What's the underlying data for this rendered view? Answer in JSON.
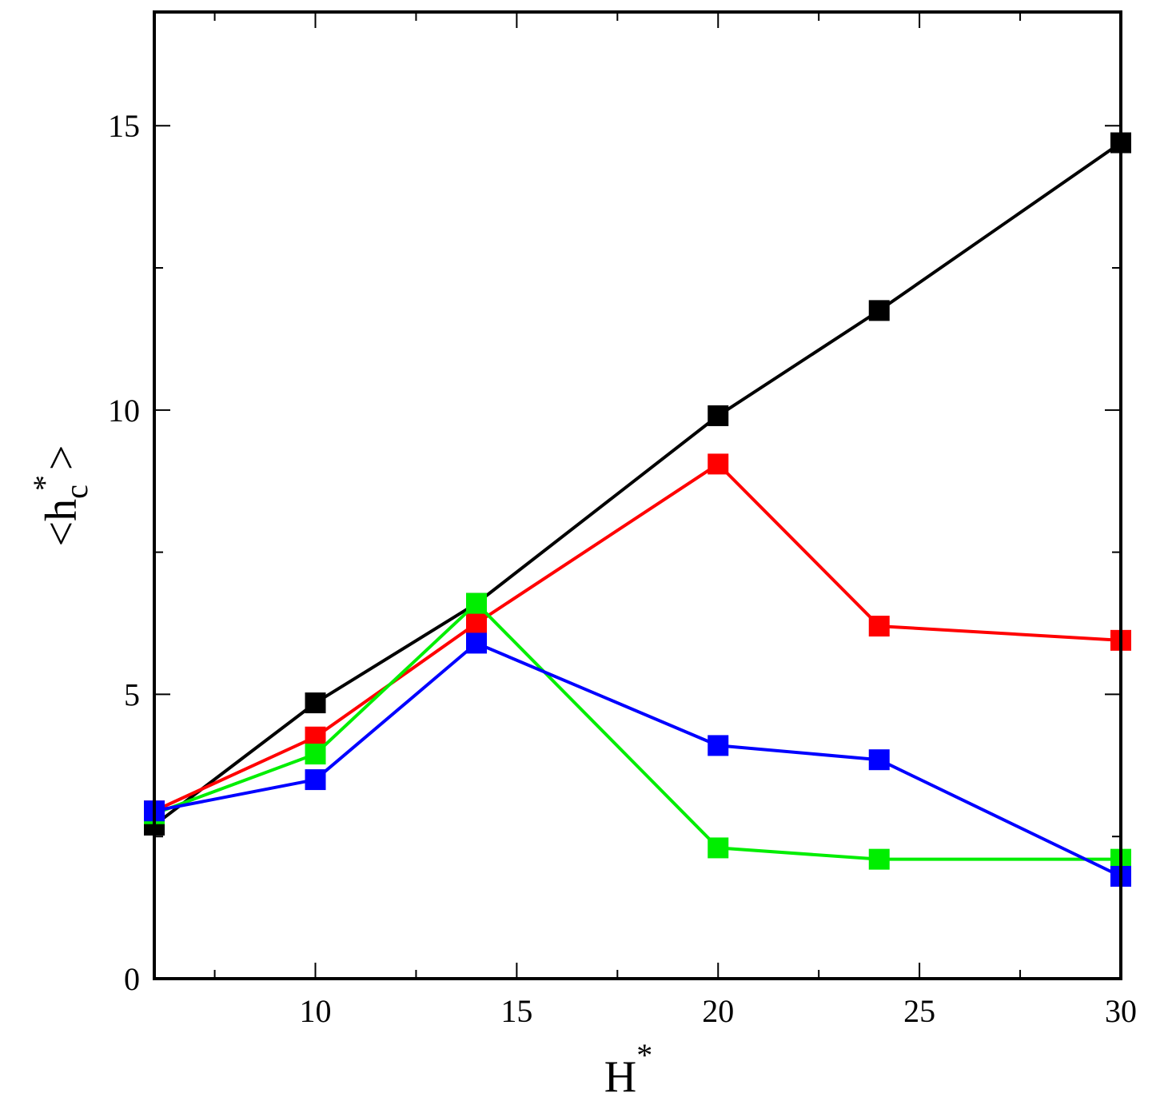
{
  "chart_data": {
    "type": "line",
    "xlabel": {
      "main": "H",
      "sup": "*"
    },
    "ylabel": {
      "open": "<h",
      "sub": "c",
      "sup": "*",
      "close": ">"
    },
    "xlim": [
      6,
      30
    ],
    "ylim": [
      0,
      17
    ],
    "xticks_major": [
      10,
      15,
      20,
      25,
      30
    ],
    "xticks_minor": [
      7.5,
      12.5,
      17.5,
      22.5,
      27.5
    ],
    "yticks_major": [
      0,
      5,
      10,
      15
    ],
    "yticks_minor": [
      2.5,
      7.5,
      12.5
    ],
    "grid": false,
    "marker": "square",
    "series": [
      {
        "color": "#000000",
        "x": [
          6,
          10,
          14,
          20,
          24,
          30
        ],
        "y": [
          2.7,
          4.85,
          6.6,
          9.9,
          11.75,
          14.7
        ]
      },
      {
        "color": "#ff0000",
        "x": [
          6,
          10,
          14,
          20,
          24,
          30
        ],
        "y": [
          2.95,
          4.25,
          6.25,
          9.05,
          6.2,
          5.95
        ]
      },
      {
        "color": "#00ee00",
        "x": [
          6,
          10,
          14,
          20,
          24,
          30
        ],
        "y": [
          2.9,
          3.95,
          6.6,
          2.3,
          2.1,
          2.1
        ]
      },
      {
        "color": "#0000ff",
        "x": [
          6,
          10,
          14,
          20,
          24,
          30
        ],
        "y": [
          2.95,
          3.5,
          5.9,
          4.1,
          3.85,
          1.8
        ]
      }
    ]
  }
}
